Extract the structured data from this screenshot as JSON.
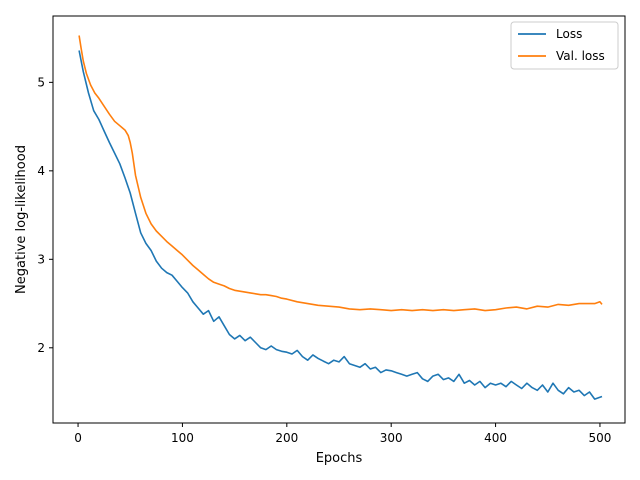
{
  "chart_data": {
    "type": "line",
    "title": "",
    "xlabel": "Epochs",
    "ylabel": "Negative log-likelihood",
    "xlim": [
      -24,
      524
    ],
    "ylim": [
      1.15,
      5.75
    ],
    "xticks": [
      0,
      100,
      200,
      300,
      400,
      500
    ],
    "yticks": [
      2,
      3,
      4,
      5
    ],
    "grid": false,
    "legend_position": "top-right",
    "series": [
      {
        "name": "Loss",
        "color": "#1f77b4",
        "x": [
          1,
          5,
          10,
          15,
          20,
          25,
          30,
          35,
          40,
          45,
          50,
          55,
          60,
          65,
          70,
          75,
          80,
          85,
          90,
          95,
          100,
          105,
          110,
          115,
          120,
          125,
          130,
          135,
          140,
          145,
          150,
          155,
          160,
          165,
          170,
          175,
          180,
          185,
          190,
          195,
          200,
          205,
          210,
          215,
          220,
          225,
          230,
          235,
          240,
          245,
          250,
          255,
          260,
          265,
          270,
          275,
          280,
          285,
          290,
          295,
          300,
          305,
          310,
          315,
          320,
          325,
          330,
          335,
          340,
          345,
          350,
          355,
          360,
          365,
          370,
          375,
          380,
          385,
          390,
          395,
          400,
          405,
          410,
          415,
          420,
          425,
          430,
          435,
          440,
          445,
          450,
          455,
          460,
          465,
          470,
          475,
          480,
          485,
          490,
          495,
          500,
          502
        ],
        "y": [
          5.36,
          5.12,
          4.88,
          4.68,
          4.58,
          4.45,
          4.32,
          4.2,
          4.08,
          3.92,
          3.75,
          3.52,
          3.3,
          3.18,
          3.1,
          2.98,
          2.9,
          2.85,
          2.82,
          2.75,
          2.68,
          2.62,
          2.52,
          2.45,
          2.38,
          2.42,
          2.3,
          2.35,
          2.25,
          2.15,
          2.1,
          2.14,
          2.08,
          2.12,
          2.06,
          2.0,
          1.98,
          2.02,
          1.98,
          1.96,
          1.95,
          1.93,
          1.97,
          1.9,
          1.86,
          1.92,
          1.88,
          1.85,
          1.82,
          1.86,
          1.84,
          1.9,
          1.82,
          1.8,
          1.78,
          1.82,
          1.76,
          1.78,
          1.72,
          1.75,
          1.74,
          1.72,
          1.7,
          1.68,
          1.7,
          1.72,
          1.65,
          1.62,
          1.68,
          1.7,
          1.64,
          1.66,
          1.62,
          1.7,
          1.6,
          1.63,
          1.58,
          1.62,
          1.55,
          1.6,
          1.58,
          1.6,
          1.56,
          1.62,
          1.58,
          1.54,
          1.6,
          1.55,
          1.52,
          1.58,
          1.5,
          1.6,
          1.52,
          1.48,
          1.55,
          1.5,
          1.52,
          1.46,
          1.5,
          1.42,
          1.44,
          1.45
        ]
      },
      {
        "name": "Val. loss",
        "color": "#ff7f0e",
        "x": [
          1,
          3,
          5,
          8,
          12,
          16,
          20,
          25,
          30,
          35,
          40,
          45,
          48,
          50,
          52,
          55,
          58,
          60,
          65,
          70,
          75,
          80,
          85,
          90,
          95,
          100,
          105,
          110,
          115,
          120,
          125,
          130,
          135,
          140,
          145,
          150,
          155,
          160,
          165,
          170,
          175,
          180,
          185,
          190,
          195,
          200,
          210,
          220,
          230,
          240,
          250,
          260,
          270,
          280,
          290,
          300,
          310,
          320,
          330,
          340,
          350,
          360,
          370,
          380,
          390,
          400,
          410,
          420,
          430,
          440,
          450,
          460,
          470,
          480,
          490,
          495,
          500,
          502
        ],
        "y": [
          5.53,
          5.38,
          5.24,
          5.1,
          4.97,
          4.88,
          4.82,
          4.73,
          4.64,
          4.56,
          4.51,
          4.46,
          4.4,
          4.32,
          4.2,
          3.95,
          3.8,
          3.7,
          3.52,
          3.4,
          3.32,
          3.26,
          3.2,
          3.15,
          3.1,
          3.05,
          2.99,
          2.93,
          2.88,
          2.83,
          2.78,
          2.74,
          2.72,
          2.7,
          2.67,
          2.65,
          2.64,
          2.63,
          2.62,
          2.61,
          2.6,
          2.6,
          2.59,
          2.58,
          2.56,
          2.55,
          2.52,
          2.5,
          2.48,
          2.47,
          2.46,
          2.44,
          2.43,
          2.44,
          2.43,
          2.42,
          2.43,
          2.42,
          2.43,
          2.42,
          2.43,
          2.42,
          2.43,
          2.44,
          2.42,
          2.43,
          2.45,
          2.46,
          2.44,
          2.47,
          2.46,
          2.49,
          2.48,
          2.5,
          2.5,
          2.5,
          2.52,
          2.49
        ]
      }
    ]
  }
}
